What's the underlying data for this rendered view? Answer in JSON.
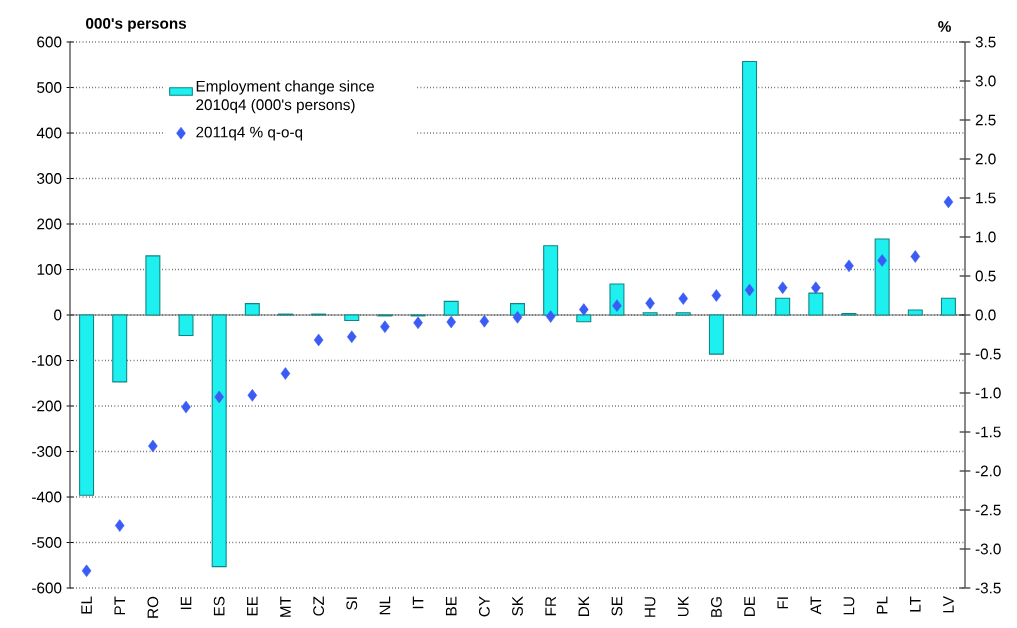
{
  "chart_data": {
    "type": "bar",
    "ylabel": "000's persons",
    "y2label": "%",
    "categories": [
      "EL",
      "PT",
      "RO",
      "IE",
      "ES",
      "EE",
      "MT",
      "CZ",
      "SI",
      "NL",
      "IT",
      "BE",
      "CY",
      "SK",
      "FR",
      "DK",
      "SE",
      "HU",
      "UK",
      "BG",
      "DE",
      "FI",
      "AT",
      "LU",
      "PL",
      "LT",
      "LV"
    ],
    "series": [
      {
        "name": "Employment change since 2010q4 (000's persons)",
        "color": "#1ef0f0",
        "values": [
          -396,
          -147,
          130,
          -45,
          -553,
          25,
          2,
          2,
          -12,
          -2,
          -2,
          30,
          null,
          25,
          152,
          -15,
          68,
          5,
          5,
          -86,
          557,
          37,
          48,
          3,
          167,
          11,
          37
        ]
      },
      {
        "name": "2011q4 % q-o-q",
        "type": "scatter",
        "axis": "y2",
        "color": "#3a5cf5",
        "marker": "diamond",
        "values": [
          -3.28,
          -2.7,
          -1.68,
          -1.18,
          -1.05,
          -1.03,
          -0.75,
          -0.32,
          -0.28,
          -0.15,
          -0.1,
          -0.09,
          -0.08,
          -0.03,
          -0.02,
          0.07,
          0.12,
          0.15,
          0.21,
          0.25,
          0.32,
          0.35,
          0.35,
          0.63,
          0.7,
          0.75,
          1.45
        ]
      }
    ],
    "ylim": [
      -600,
      600
    ],
    "yticks": [
      -600,
      -500,
      -400,
      -300,
      -200,
      -100,
      0,
      100,
      200,
      300,
      400,
      500,
      600
    ],
    "y2lim": [
      -3.5,
      3.5
    ],
    "y2ticks": [
      -3.5,
      {
        "value": -3,
        "label": "-3.0"
      },
      -2.5,
      {
        "value": -2,
        "label": "-2.0"
      },
      -1.5,
      {
        "value": -1,
        "label": "-1.0"
      },
      -0.5,
      {
        "value": 0,
        "label": "0.0"
      },
      0.5,
      {
        "value": 1,
        "label": "1.0"
      },
      1.5,
      {
        "value": 2,
        "label": "2.0"
      },
      2.5,
      {
        "value": 3,
        "label": "3.0"
      },
      3.5
    ],
    "grid": "y",
    "legend": "top left"
  }
}
